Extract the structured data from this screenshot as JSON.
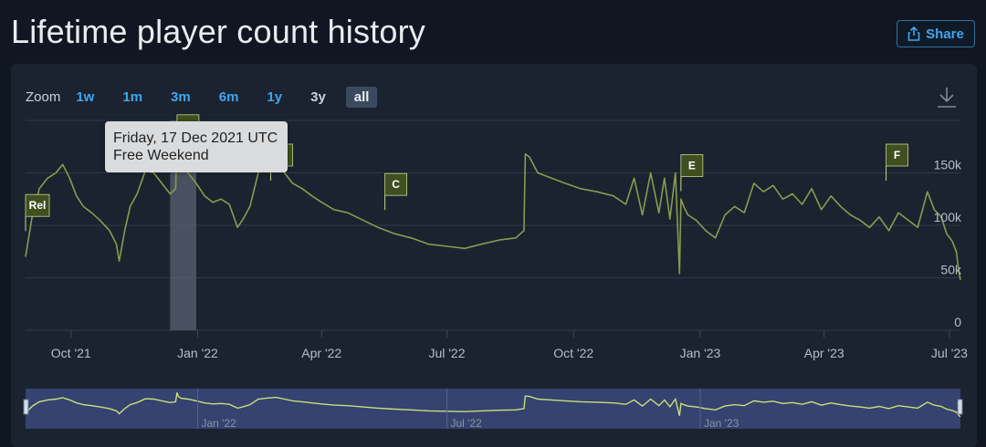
{
  "page": {
    "title": "Lifetime player count history"
  },
  "share": {
    "label": "Share",
    "icon": "share-icon"
  },
  "zoom": {
    "label": "Zoom",
    "options": [
      "1w",
      "1m",
      "3m",
      "6m",
      "1y",
      "3y",
      "all"
    ],
    "active": "all"
  },
  "tooltip": {
    "date": "Friday, 17 Dec 2021 UTC",
    "event": "Free Weekend"
  },
  "colors": {
    "line": "#8a9a4e",
    "flag_fill": "#3f4f1f",
    "flag_border": "#c7d58a",
    "navigator_line": "#c8e07a",
    "navigator_bg": "#3a4678",
    "link": "#3ea6f0"
  },
  "chart_data": {
    "type": "line",
    "title": "",
    "xlabel": "",
    "ylabel": "",
    "ylim": [
      0,
      200000
    ],
    "xlim": [
      "2021-08-29",
      "2023-07-09"
    ],
    "y_ticks": [
      0,
      50000,
      100000,
      150000
    ],
    "y_tick_labels": [
      "0",
      "50k",
      "100k",
      "150k"
    ],
    "x_ticks": [
      "2021-10-01",
      "2022-01-01",
      "2022-04-01",
      "2022-07-01",
      "2022-10-01",
      "2023-01-01",
      "2023-04-01",
      "2023-07-01"
    ],
    "x_tick_labels": [
      "Oct '21",
      "Jan '22",
      "Apr '22",
      "Jul '22",
      "Oct '22",
      "Jan '23",
      "Apr '23",
      "Jul '23"
    ],
    "grid": true,
    "y_axis_position": "right",
    "series": [
      {
        "x": [
          "2021-08-29",
          "2021-09-03",
          "2021-09-08",
          "2021-09-14",
          "2021-09-20",
          "2021-09-25",
          "2021-09-30",
          "2021-10-05",
          "2021-10-10",
          "2021-10-16",
          "2021-10-22",
          "2021-10-29",
          "2021-11-03",
          "2021-11-05",
          "2021-11-09",
          "2021-11-13",
          "2021-11-18",
          "2021-11-24",
          "2021-11-30",
          "2021-12-06",
          "2021-12-12",
          "2021-12-16",
          "2021-12-17",
          "2021-12-18",
          "2021-12-20",
          "2021-12-25",
          "2021-12-31",
          "2022-01-06",
          "2022-01-12",
          "2022-01-18",
          "2022-01-24",
          "2022-01-30",
          "2022-02-03",
          "2022-02-08",
          "2022-02-14",
          "2022-02-20",
          "2022-02-27",
          "2022-03-05",
          "2022-03-11",
          "2022-03-18",
          "2022-03-25",
          "2022-04-01",
          "2022-04-10",
          "2022-04-20",
          "2022-05-01",
          "2022-05-12",
          "2022-05-24",
          "2022-06-05",
          "2022-06-18",
          "2022-07-01",
          "2022-07-14",
          "2022-07-26",
          "2022-08-08",
          "2022-08-20",
          "2022-08-26",
          "2022-08-27",
          "2022-08-30",
          "2022-09-05",
          "2022-09-15",
          "2022-09-25",
          "2022-10-06",
          "2022-10-18",
          "2022-10-30",
          "2022-11-08",
          "2022-11-14",
          "2022-11-20",
          "2022-11-26",
          "2022-12-02",
          "2022-12-06",
          "2022-12-10",
          "2022-12-14",
          "2022-12-17",
          "2022-12-18",
          "2022-12-20",
          "2022-12-23",
          "2022-12-29",
          "2023-01-05",
          "2023-01-12",
          "2023-01-19",
          "2023-01-26",
          "2023-02-02",
          "2023-02-09",
          "2023-02-16",
          "2023-02-23",
          "2023-03-02",
          "2023-03-09",
          "2023-03-16",
          "2023-03-23",
          "2023-03-30",
          "2023-04-06",
          "2023-04-13",
          "2023-04-20",
          "2023-04-27",
          "2023-05-04",
          "2023-05-11",
          "2023-05-18",
          "2023-05-25",
          "2023-06-01",
          "2023-06-08",
          "2023-06-15",
          "2023-06-20",
          "2023-06-25",
          "2023-06-29",
          "2023-07-03",
          "2023-07-06",
          "2023-07-08",
          "2023-07-09"
        ],
        "y": [
          70000,
          110000,
          135000,
          145000,
          150000,
          158000,
          145000,
          128000,
          118000,
          112000,
          105000,
          95000,
          82000,
          66000,
          95000,
          118000,
          130000,
          152000,
          150000,
          140000,
          130000,
          135000,
          188000,
          165000,
          155000,
          150000,
          140000,
          128000,
          122000,
          125000,
          120000,
          98000,
          106000,
          118000,
          150000,
          156000,
          160000,
          150000,
          140000,
          135000,
          128000,
          122000,
          115000,
          112000,
          105000,
          98000,
          92000,
          88000,
          82000,
          80000,
          78000,
          82000,
          86000,
          88000,
          95000,
          168000,
          165000,
          150000,
          145000,
          140000,
          135000,
          132000,
          128000,
          120000,
          145000,
          110000,
          150000,
          112000,
          145000,
          106000,
          150000,
          54000,
          125000,
          118000,
          110000,
          105000,
          95000,
          88000,
          110000,
          118000,
          112000,
          140000,
          132000,
          138000,
          125000,
          130000,
          120000,
          135000,
          115000,
          128000,
          118000,
          110000,
          105000,
          98000,
          108000,
          95000,
          112000,
          105000,
          98000,
          132000,
          115000,
          108000,
          92000,
          85000,
          75000,
          55000,
          48000
        ]
      }
    ],
    "events": [
      {
        "label": "Rel",
        "x": "2021-08-29",
        "y": 112000
      },
      {
        "label": "A",
        "x": "2021-12-17",
        "y": 188000
      },
      {
        "label": "B",
        "x": "2022-02-23",
        "y": 160000
      },
      {
        "label": "C",
        "x": "2022-05-17",
        "y": 132000
      },
      {
        "label": "E",
        "x": "2022-12-18",
        "y": 150000
      },
      {
        "label": "F",
        "x": "2023-05-16",
        "y": 160000
      }
    ],
    "highlight_band": {
      "from": "2021-12-12",
      "to": "2021-12-31"
    },
    "navigator": {
      "labels": [
        "Jan '22",
        "Jul '22",
        "Jan '23"
      ],
      "label_dates": [
        "2022-01-01",
        "2022-07-01",
        "2023-01-01"
      ]
    }
  }
}
